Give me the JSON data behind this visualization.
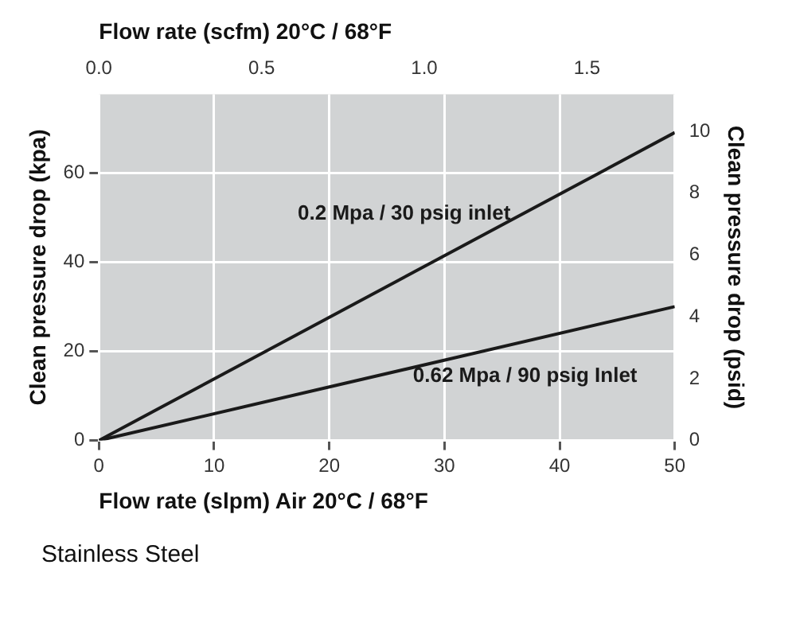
{
  "chart_data": {
    "type": "line",
    "xlabel": "Flow rate (slpm) Air 20°C / 68°F",
    "x2label": "Flow rate (scfm) 20°C / 68°F",
    "ylabel": "Clean pressure drop (kpa)",
    "y2label": "Clean pressure drop (psid)",
    "x": [
      0,
      50
    ],
    "series": [
      {
        "name": "0.2 Mpa / 30 psig inlet",
        "color": "#1a1a1a",
        "values": [
          0,
          69
        ]
      },
      {
        "name": "0.62 Mpa / 90 psig Inlet",
        "color": "#1a1a1a",
        "values": [
          0,
          30
        ]
      }
    ],
    "xlim": [
      0,
      50
    ],
    "xticks": [
      0,
      10,
      20,
      30,
      40,
      50
    ],
    "x2lim": [
      0,
      1.77
    ],
    "x2ticks": [
      {
        "value": 0,
        "label": "0.0"
      },
      0.5,
      {
        "value": 1,
        "label": "1.0"
      },
      1.5
    ],
    "ylim": [
      0,
      77.6
    ],
    "yticks": [
      0,
      20,
      40,
      60
    ],
    "y2lim": [
      0,
      11.2
    ],
    "y2ticks": [
      0,
      2,
      4,
      6,
      8,
      10
    ],
    "annotations": [
      "Stainless Steel"
    ],
    "grid": true,
    "legend": false,
    "marker": "none",
    "line_style": "solid"
  }
}
